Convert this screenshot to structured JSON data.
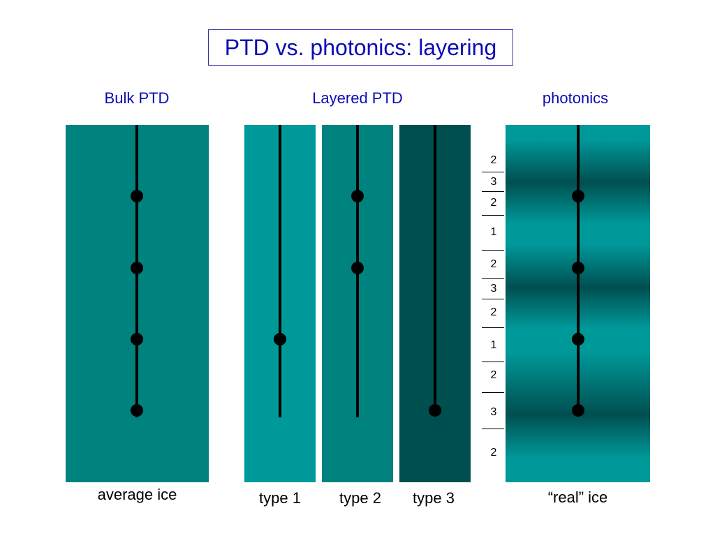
{
  "title": "PTD vs. photonics: layering",
  "headers": {
    "bulk": "Bulk PTD",
    "layered": "Layered PTD",
    "photonics": "photonics"
  },
  "captions": {
    "average": "average ice",
    "type1": "type 1",
    "type2": "type 2",
    "type3": "type 3",
    "real": "“real” ice"
  },
  "layer_labels": [
    "2",
    "3",
    "2",
    "1",
    "2",
    "3",
    "2",
    "1",
    "2",
    "3",
    "2"
  ],
  "colors": {
    "average_ice": "#00827f",
    "type1": "#009999",
    "type2": "#00827f",
    "type3": "#004f4f",
    "title_text": "#0b0bb4"
  }
}
